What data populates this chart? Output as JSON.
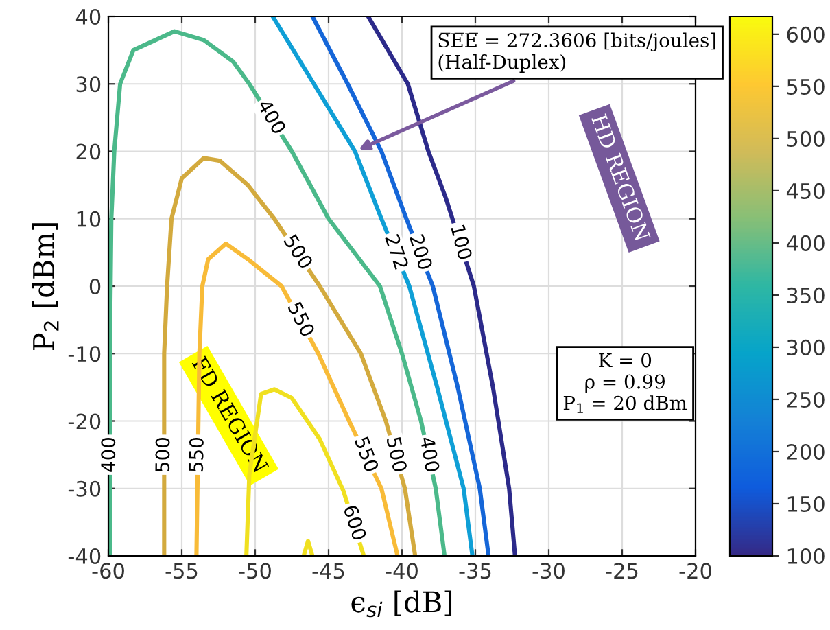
{
  "chart_data": {
    "type": "line",
    "xlabel": "ϵ$_{si}$ [dB]",
    "ylabel": "P$_{2}$ [dBm]",
    "xlim": [
      -60,
      -20
    ],
    "xticks": [
      -60,
      -55,
      -50,
      -45,
      -40,
      -35,
      -30,
      -25,
      -20
    ],
    "ylim": [
      -40,
      40
    ],
    "yticks": [
      -40,
      -30,
      -20,
      -10,
      0,
      10,
      20,
      30,
      40
    ],
    "clim": [
      100,
      617
    ],
    "cticks": [
      100,
      150,
      200,
      250,
      300,
      350,
      400,
      450,
      500,
      550,
      600
    ],
    "grid": true,
    "legend": false,
    "marker": "none",
    "line_style": "solid",
    "series": [
      {
        "name": "100",
        "color": "#2c2a8a",
        "x": [
          -42.3,
          -39.6,
          -38.2,
          -37.0,
          -35.1,
          -33.8,
          -32.7,
          -32.3
        ],
        "values": [
          40,
          30,
          20,
          13,
          0,
          -15,
          -30,
          -40
        ]
      },
      {
        "name": "200",
        "color": "#1566d8",
        "x": [
          -46.1,
          -43.7,
          -41.4,
          -39.7,
          -37.9,
          -36.2,
          -34.7,
          -34.1
        ],
        "values": [
          40,
          30,
          20,
          10,
          0,
          -15,
          -30,
          -40
        ]
      },
      {
        "name": "272",
        "color": "#0f9fd6",
        "x": [
          -48.8,
          -46.0,
          -43.2,
          -41.4,
          -39.5,
          -37.6,
          -35.8,
          -35.2
        ],
        "values": [
          40,
          30,
          20,
          10,
          0,
          -15,
          -30,
          -40
        ]
      },
      {
        "name": "400",
        "color": "#4bb98a",
        "x": [
          -59.9,
          -59.9,
          -59.8,
          -59.6,
          -59.2,
          -58.3,
          -55.5,
          -53.5,
          -51.5,
          -50.4,
          -47.5,
          -45.0,
          -41.5,
          -40.0,
          -38.7,
          -37.7,
          -37.1
        ],
        "values": [
          -40,
          -10,
          10,
          20,
          30,
          35,
          37.8,
          36.5,
          33.3,
          30,
          20,
          10,
          0,
          -10,
          -20,
          -30,
          -40
        ]
      },
      {
        "name": "500",
        "color": "#d3aa3e",
        "x": [
          -56.2,
          -56.2,
          -56.0,
          -55.7,
          -55.0,
          -53.5,
          -52.4,
          -50.5,
          -48.7,
          -45.6,
          -42.8,
          -41.1,
          -39.8,
          -39.1
        ],
        "values": [
          -40,
          -10,
          0,
          10,
          16,
          19,
          18.6,
          15,
          10,
          0,
          -10,
          -20,
          -30,
          -40
        ]
      },
      {
        "name": "550",
        "color": "#f8bb38",
        "x": [
          -54.0,
          -53.8,
          -53.6,
          -53.2,
          -52.0,
          -50.5,
          -48.2,
          -45.7,
          -43.6,
          -41.4,
          -40.3
        ],
        "values": [
          -40,
          -10,
          0,
          4,
          6.3,
          4,
          0,
          -10,
          -20,
          -30,
          -40
        ]
      },
      {
        "name": "600",
        "color": "#f0e020",
        "x": [
          -50.6,
          -50.4,
          -49.6,
          -48.7,
          -47.5,
          -45.6,
          -44.0,
          -42.6
        ],
        "values": [
          -40,
          -28,
          -16,
          -15.3,
          -16.6,
          -22.7,
          -30.3,
          -40
        ]
      },
      {
        "color": "#f0e020",
        "x": [
          -46.7,
          -46.4,
          -46.1
        ],
        "values": [
          -40,
          -37.8,
          -40
        ]
      }
    ],
    "annotations": [
      {
        "text": "S̅E̅E̅ = 272.3606 [bits/joules]\n(Half-Duplex)",
        "x": -43.2,
        "y": 20
      },
      "HD REGION",
      "FD REGION",
      "K = 0\nρ = 0.99\nP$_{1}$ = 20 dBm"
    ]
  }
}
